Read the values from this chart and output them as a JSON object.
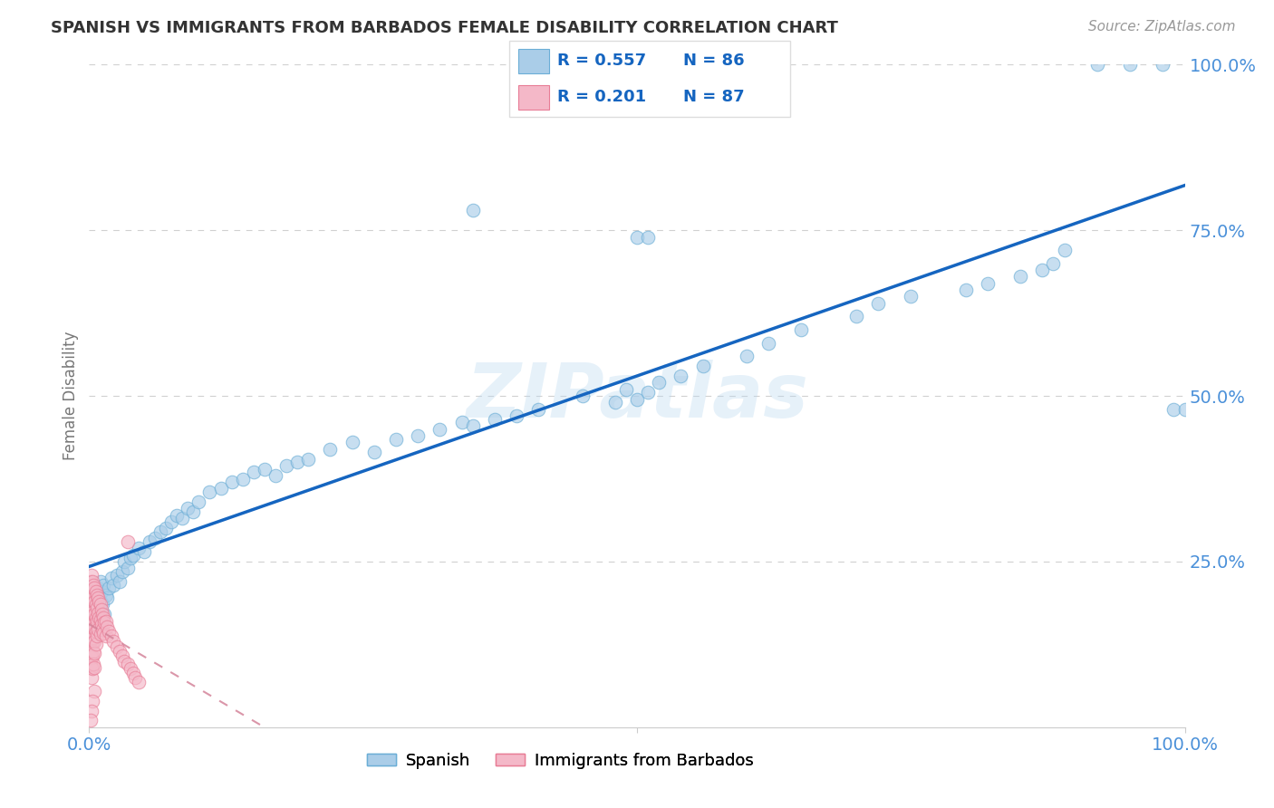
{
  "title": "SPANISH VS IMMIGRANTS FROM BARBADOS FEMALE DISABILITY CORRELATION CHART",
  "source": "Source: ZipAtlas.com",
  "ylabel": "Female Disability",
  "xlim": [
    0.0,
    1.0
  ],
  "ylim": [
    0.0,
    1.0
  ],
  "background_color": "#ffffff",
  "watermark": "ZIPatlas",
  "blue_scatter_face": "#aacde8",
  "blue_scatter_edge": "#6baed6",
  "pink_scatter_face": "#f4b8c8",
  "pink_scatter_edge": "#e87d96",
  "blue_line_color": "#1565c0",
  "pink_line_color": "#d4849a",
  "grid_color": "#d0d0d0",
  "tick_label_color": "#4a90d9",
  "ylabel_color": "#777777",
  "title_color": "#333333",
  "source_color": "#999999",
  "R_spanish": 0.557,
  "N_spanish": 86,
  "R_barbados": 0.201,
  "N_barbados": 87,
  "legend_box_color": "#dddddd",
  "sp_x": [
    0.003,
    0.004,
    0.005,
    0.006,
    0.007,
    0.008,
    0.009,
    0.01,
    0.01,
    0.011,
    0.012,
    0.013,
    0.014,
    0.015,
    0.016,
    0.018,
    0.02,
    0.022,
    0.025,
    0.028,
    0.03,
    0.032,
    0.035,
    0.038,
    0.04,
    0.045,
    0.05,
    0.055,
    0.06,
    0.065,
    0.07,
    0.075,
    0.08,
    0.085,
    0.09,
    0.095,
    0.1,
    0.11,
    0.12,
    0.13,
    0.14,
    0.15,
    0.16,
    0.17,
    0.18,
    0.19,
    0.2,
    0.22,
    0.24,
    0.26,
    0.28,
    0.3,
    0.32,
    0.34,
    0.35,
    0.37,
    0.39,
    0.41,
    0.45,
    0.48,
    0.49,
    0.5,
    0.51,
    0.52,
    0.54,
    0.56,
    0.6,
    0.62,
    0.65,
    0.7,
    0.72,
    0.75,
    0.8,
    0.82,
    0.85,
    0.87,
    0.88,
    0.89,
    0.92,
    0.95,
    0.98,
    0.99,
    1.0,
    0.35,
    0.5,
    0.51
  ],
  "sp_y": [
    0.2,
    0.18,
    0.16,
    0.195,
    0.175,
    0.21,
    0.165,
    0.19,
    0.22,
    0.205,
    0.185,
    0.215,
    0.17,
    0.2,
    0.195,
    0.21,
    0.225,
    0.215,
    0.23,
    0.22,
    0.235,
    0.25,
    0.24,
    0.255,
    0.26,
    0.27,
    0.265,
    0.28,
    0.285,
    0.295,
    0.3,
    0.31,
    0.32,
    0.315,
    0.33,
    0.325,
    0.34,
    0.355,
    0.36,
    0.37,
    0.375,
    0.385,
    0.39,
    0.38,
    0.395,
    0.4,
    0.405,
    0.42,
    0.43,
    0.415,
    0.435,
    0.44,
    0.45,
    0.46,
    0.455,
    0.465,
    0.47,
    0.48,
    0.5,
    0.49,
    0.51,
    0.495,
    0.505,
    0.52,
    0.53,
    0.545,
    0.56,
    0.58,
    0.6,
    0.62,
    0.64,
    0.65,
    0.66,
    0.67,
    0.68,
    0.69,
    0.7,
    0.72,
    1.0,
    1.0,
    1.0,
    0.48,
    0.48,
    0.78,
    0.74,
    0.74
  ],
  "bar_x": [
    0.0,
    0.0,
    0.0,
    0.001,
    0.001,
    0.001,
    0.001,
    0.001,
    0.001,
    0.001,
    0.001,
    0.002,
    0.002,
    0.002,
    0.002,
    0.002,
    0.002,
    0.002,
    0.002,
    0.002,
    0.002,
    0.003,
    0.003,
    0.003,
    0.003,
    0.003,
    0.003,
    0.003,
    0.003,
    0.004,
    0.004,
    0.004,
    0.004,
    0.004,
    0.004,
    0.004,
    0.005,
    0.005,
    0.005,
    0.005,
    0.005,
    0.005,
    0.005,
    0.006,
    0.006,
    0.006,
    0.006,
    0.006,
    0.007,
    0.007,
    0.007,
    0.007,
    0.008,
    0.008,
    0.008,
    0.009,
    0.009,
    0.01,
    0.01,
    0.01,
    0.011,
    0.011,
    0.012,
    0.012,
    0.013,
    0.013,
    0.014,
    0.015,
    0.015,
    0.016,
    0.018,
    0.02,
    0.022,
    0.025,
    0.028,
    0.03,
    0.032,
    0.035,
    0.038,
    0.04,
    0.042,
    0.045,
    0.005,
    0.003,
    0.002,
    0.001,
    0.035
  ],
  "bar_y": [
    0.18,
    0.16,
    0.145,
    0.2,
    0.22,
    0.19,
    0.17,
    0.15,
    0.13,
    0.11,
    0.095,
    0.21,
    0.23,
    0.2,
    0.18,
    0.16,
    0.14,
    0.125,
    0.105,
    0.09,
    0.075,
    0.22,
    0.205,
    0.185,
    0.165,
    0.145,
    0.128,
    0.108,
    0.088,
    0.215,
    0.195,
    0.175,
    0.155,
    0.135,
    0.115,
    0.095,
    0.21,
    0.19,
    0.17,
    0.15,
    0.13,
    0.112,
    0.09,
    0.205,
    0.185,
    0.165,
    0.145,
    0.125,
    0.2,
    0.18,
    0.16,
    0.138,
    0.195,
    0.172,
    0.148,
    0.19,
    0.165,
    0.185,
    0.162,
    0.14,
    0.178,
    0.155,
    0.17,
    0.148,
    0.165,
    0.142,
    0.158,
    0.16,
    0.138,
    0.152,
    0.145,
    0.138,
    0.13,
    0.122,
    0.115,
    0.108,
    0.1,
    0.095,
    0.088,
    0.082,
    0.075,
    0.068,
    0.055,
    0.04,
    0.025,
    0.01,
    0.28
  ]
}
